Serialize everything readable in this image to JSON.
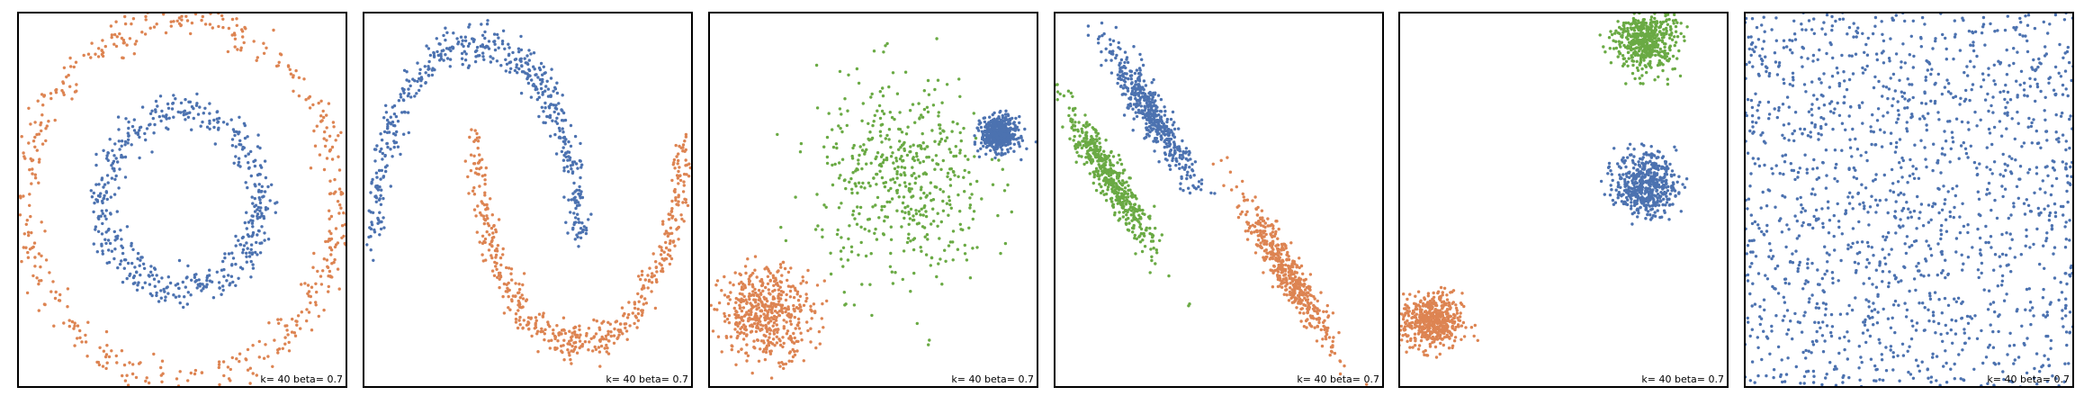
{
  "colors": {
    "c0": "#4c72b0",
    "c1": "#dd8452",
    "c2": "#6aaa44"
  },
  "chart_data": [
    {
      "type": "scatter",
      "dataset": "circles",
      "annotation": "k= 40 beta= 0.7",
      "xlim": [
        -1.05,
        1.05
      ],
      "ylim": [
        -1.05,
        1.05
      ],
      "grid": false,
      "clusters": [
        {
          "kind": "ring",
          "center": [
            0,
            0
          ],
          "radius": 0.5,
          "noise": 0.05,
          "n": 500,
          "color": "#4c72b0"
        },
        {
          "kind": "ring",
          "center": [
            0,
            0
          ],
          "radius": 1.0,
          "noise": 0.05,
          "n": 500,
          "color": "#dd8452"
        }
      ]
    },
    {
      "type": "scatter",
      "dataset": "moons",
      "annotation": "k= 40 beta= 0.7",
      "xlim": [
        -1.1,
        2.1
      ],
      "ylim": [
        -0.72,
        1.15
      ],
      "grid": false,
      "clusters": [
        {
          "kind": "arc",
          "center": [
            0,
            0
          ],
          "radius": 1.0,
          "from": 0,
          "to": 180,
          "noise": 0.05,
          "n": 500,
          "color": "#4c72b0"
        },
        {
          "kind": "arc",
          "center": [
            1,
            0.5
          ],
          "radius": 1.0,
          "from": 180,
          "to": 360,
          "noise": 0.05,
          "n": 500,
          "color": "#dd8452"
        }
      ]
    },
    {
      "type": "scatter",
      "dataset": "varied",
      "annotation": "k= 40 beta= 0.7",
      "xlim": [
        -11,
        6
      ],
      "ylim": [
        -9,
        11
      ],
      "grid": false,
      "clusters": [
        {
          "kind": "gauss",
          "center": [
            -1.0,
            2.0
          ],
          "std": [
            2.2,
            2.8
          ],
          "n": 500,
          "color": "#6aaa44"
        },
        {
          "kind": "gauss",
          "center": [
            4.0,
            4.5
          ],
          "std": [
            0.45,
            0.45
          ],
          "n": 500,
          "color": "#4c72b0"
        },
        {
          "kind": "gauss",
          "center": [
            -8.0,
            -5.0
          ],
          "std": [
            1.2,
            1.2
          ],
          "n": 500,
          "color": "#dd8452"
        }
      ]
    },
    {
      "type": "scatter",
      "dataset": "aniso",
      "annotation": "k= 40 beta= 0.7",
      "xlim": [
        -6,
        6
      ],
      "ylim": [
        -6,
        6
      ],
      "grid": false,
      "clusters": [
        {
          "kind": "line",
          "center": [
            -2.5,
            2.8
          ],
          "angle": -55,
          "length": 2.8,
          "width": 0.25,
          "n": 500,
          "color": "#4c72b0"
        },
        {
          "kind": "line",
          "center": [
            -4.0,
            0.7
          ],
          "angle": -55,
          "length": 2.8,
          "width": 0.25,
          "n": 500,
          "color": "#6aaa44"
        },
        {
          "kind": "line",
          "center": [
            2.5,
            -2.3
          ],
          "angle": -55,
          "length": 2.8,
          "width": 0.25,
          "n": 500,
          "color": "#dd8452"
        }
      ]
    },
    {
      "type": "scatter",
      "dataset": "blobs",
      "annotation": "k= 40 beta= 0.7",
      "xlim": [
        -6,
        6
      ],
      "ylim": [
        -6,
        6
      ],
      "grid": false,
      "clusters": [
        {
          "kind": "gauss",
          "center": [
            3.0,
            5.1
          ],
          "std": [
            0.55,
            0.5
          ],
          "n": 500,
          "color": "#6aaa44"
        },
        {
          "kind": "gauss",
          "center": [
            3.0,
            0.5
          ],
          "std": [
            0.55,
            0.5
          ],
          "n": 500,
          "color": "#4c72b0"
        },
        {
          "kind": "gauss",
          "center": [
            -4.8,
            -3.9
          ],
          "std": [
            0.55,
            0.45
          ],
          "n": 500,
          "color": "#dd8452"
        }
      ]
    },
    {
      "type": "scatter",
      "dataset": "no_structure",
      "annotation": "k= 40 beta= 0.7",
      "xlim": [
        0,
        1
      ],
      "ylim": [
        0,
        1
      ],
      "grid": false,
      "clusters": [
        {
          "kind": "uniform",
          "xrange": [
            0,
            1
          ],
          "yrange": [
            0,
            1
          ],
          "n": 1500,
          "color": "#4c72b0"
        }
      ]
    }
  ]
}
